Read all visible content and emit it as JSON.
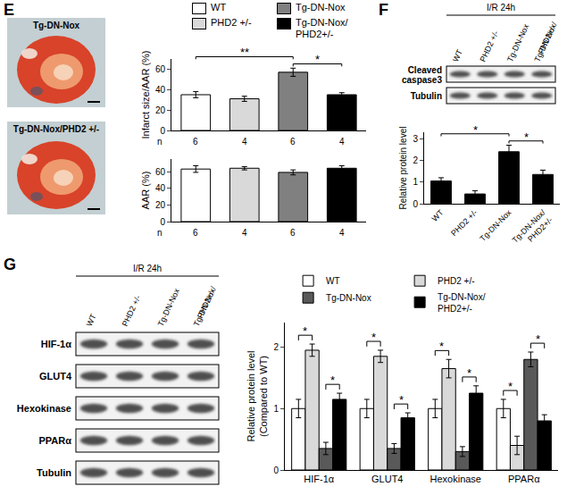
{
  "panel_labels": [
    "E",
    "F",
    "G"
  ],
  "heart_images": {
    "labels": [
      "Tg-DN-Nox",
      "Tg-DN-Nox/PHD2 +/-"
    ]
  },
  "blots": [
    {
      "header": "I/R 24h",
      "lanes": [
        [
          "WT"
        ],
        [
          "PHD2 +/-"
        ],
        [
          "Tg-DN-Nox"
        ],
        [
          "Tg-DN-Nox/",
          "PHD2+/-"
        ]
      ],
      "rows": [
        "Cleaved caspase3",
        "Tubulin"
      ]
    },
    {
      "header": "I/R 24h",
      "lanes": [
        [
          "WT"
        ],
        [
          "PHD2 +/-"
        ],
        [
          "Tg-DN-Nox"
        ],
        [
          "Tg-DN-Nox/",
          "PHD2+/-"
        ]
      ],
      "rows": [
        "HIF-1α",
        "GLUT4",
        "Hexokinase",
        "PPARα",
        "Tubulin"
      ]
    }
  ],
  "chart_data": [
    {
      "type": "bar",
      "categories": [
        "WT",
        "PHD2 +/-",
        "Tg-DN-Nox",
        "Tg-DN-Nox/\nPHD2+/-"
      ],
      "values": [
        35,
        31,
        57,
        35
      ],
      "errors": [
        3,
        2.5,
        4,
        2
      ],
      "colors": [
        "#ffffff",
        "#d9d9d9",
        "#808080",
        "#000000"
      ],
      "y_label": "Infarct size/AAR (%)",
      "ylim": [
        0,
        70
      ],
      "yticks": [
        0,
        20,
        40,
        60
      ],
      "tick_labels": "y",
      "legend": "top",
      "sample_size_label": "n",
      "sample_sizes": [
        6,
        4,
        6,
        4
      ],
      "significance": [
        {
          "from": "WT",
          "to": "Tg-DN-Nox",
          "text": "**"
        },
        {
          "from": "Tg-DN-Nox",
          "to": "Tg-DN-Nox/\nPHD2+/-",
          "text": "*"
        }
      ]
    },
    {
      "type": "bar",
      "categories": [
        "WT",
        "PHD2 +/-",
        "Tg-DN-Nox",
        "Tg-DN-Nox/\nPHD2+/-"
      ],
      "values": [
        63,
        64,
        59,
        64
      ],
      "errors": [
        4,
        2,
        3,
        3
      ],
      "colors": [
        "#ffffff",
        "#d9d9d9",
        "#808080",
        "#000000"
      ],
      "y_label": "AAR (%)",
      "ylim": [
        0,
        75
      ],
      "yticks": [
        0,
        20,
        40,
        60
      ],
      "tick_labels": "y",
      "sample_size_label": "n",
      "sample_sizes": [
        6,
        4,
        6,
        4
      ]
    },
    {
      "type": "bar",
      "categories": [
        "WT",
        "PHD2 +/-",
        "Tg-DN-Nox",
        "Tg-DN-Nox/\nPHD2+/-"
      ],
      "values": [
        1.05,
        0.45,
        2.4,
        1.35
      ],
      "errors": [
        0.15,
        0.15,
        0.3,
        0.2
      ],
      "color": "#000000",
      "y_label": "Relative protein level",
      "ylim": [
        0,
        3.3
      ],
      "yticks": [
        0,
        1,
        2,
        3
      ],
      "significance": [
        {
          "from": "WT",
          "to": "Tg-DN-Nox",
          "text": "*"
        },
        {
          "from": "Tg-DN-Nox",
          "to": "Tg-DN-Nox/\nPHD2+/-",
          "text": "*"
        }
      ]
    },
    {
      "type": "bar",
      "categories": [
        "HIF-1α",
        "GLUT4",
        "Hexokinase",
        "PPARα"
      ],
      "series": [
        {
          "name": "WT",
          "color": "#ffffff",
          "values": [
            1,
            1,
            1,
            1
          ],
          "errors": [
            0.15,
            0.15,
            0.15,
            0.15
          ]
        },
        {
          "name": "PHD2 +/-",
          "color": "#d9d9d9",
          "values": [
            1.95,
            1.85,
            1.65,
            0.4
          ],
          "errors": [
            0.1,
            0.1,
            0.15,
            0.15
          ]
        },
        {
          "name": "Tg-DN-Nox",
          "color": "#595959",
          "values": [
            0.35,
            0.35,
            0.3,
            1.8
          ],
          "errors": [
            0.1,
            0.08,
            0.08,
            0.12
          ]
        },
        {
          "name": "Tg-DN-Nox/\nPHD2+/-",
          "color": "#000000",
          "values": [
            1.15,
            0.85,
            1.25,
            0.8
          ],
          "errors": [
            0.1,
            0.08,
            0.12,
            0.1
          ]
        }
      ],
      "y_label": [
        "Relative protein level",
        "(Compared to WT)"
      ],
      "ylim": [
        0,
        2.4
      ],
      "yticks": [
        0,
        1,
        2
      ],
      "legend": "top",
      "significance": [
        {
          "category": "HIF-1α",
          "from": "WT",
          "to": "PHD2 +/-",
          "text": "*"
        },
        {
          "category": "HIF-1α",
          "from": "Tg-DN-Nox",
          "to": "Tg-DN-Nox/\nPHD2+/-",
          "text": "*"
        },
        {
          "category": "GLUT4",
          "from": "WT",
          "to": "PHD2 +/-",
          "text": "*"
        },
        {
          "category": "GLUT4",
          "from": "Tg-DN-Nox",
          "to": "Tg-DN-Nox/\nPHD2+/-",
          "text": "*"
        },
        {
          "category": "Hexokinase",
          "from": "WT",
          "to": "PHD2 +/-",
          "text": "*"
        },
        {
          "category": "Hexokinase",
          "from": "Tg-DN-Nox",
          "to": "Tg-DN-Nox/\nPHD2+/-",
          "text": "*"
        },
        {
          "category": "PPARα",
          "from": "WT",
          "to": "PHD2 +/-",
          "text": "*"
        },
        {
          "category": "PPARα",
          "from": "Tg-DN-Nox",
          "to": "Tg-DN-Nox/\nPHD2+/-",
          "text": "*"
        }
      ]
    }
  ]
}
